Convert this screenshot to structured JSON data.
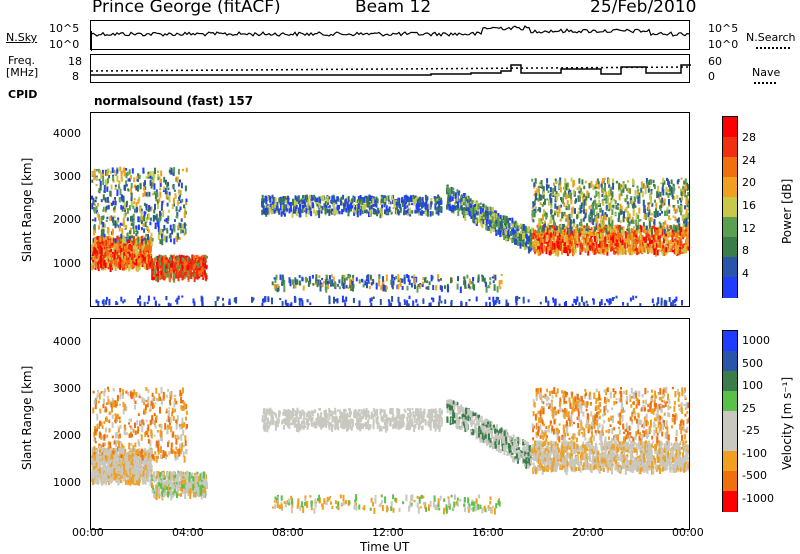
{
  "header": {
    "station": "Prince George (fitACF)",
    "beam": "Beam 12",
    "date": "25/Feb/2010"
  },
  "strip_panels": {
    "nsky_label": "N.Sky",
    "nsearch_label": "N.Search",
    "freq_label_1": "Freq.",
    "freq_label_2": "[MHz]",
    "nave_label": "Nave",
    "cpid_label": "CPID",
    "cpid_text": "normalsound (fast) 157",
    "nsky_ticks": [
      "10^5",
      "10^0"
    ],
    "freq_ticks": [
      "18",
      "8"
    ],
    "nave_ticks": [
      "60",
      "0"
    ]
  },
  "colors": {
    "power_scale": [
      "#1f3cff",
      "#2a55a8",
      "#3b7d4a",
      "#5aa050",
      "#c8c84a",
      "#f0a020",
      "#f07010",
      "#f03010",
      "#ff0000"
    ],
    "velocity_scale": [
      "#1f3cff",
      "#2a55a8",
      "#3b7d4a",
      "#5ac04a",
      "#c8c8c0",
      "#c8c8c0",
      "#f0a020",
      "#f07010",
      "#ff0000"
    ]
  },
  "chart_data": [
    {
      "type": "heatmap",
      "ylabel": "Slant Range [km]",
      "xlabel": "Time UT",
      "x_ticks": [
        "00:00",
        "04:00",
        "08:00",
        "12:00",
        "16:00",
        "20:00",
        "00:00"
      ],
      "y_ticks": [
        "1000",
        "2000",
        "3000",
        "4000"
      ],
      "ylim": [
        0,
        4500
      ],
      "colorbar_label": "Power [dB]",
      "colorbar_ticks": [
        "4",
        "8",
        "12",
        "16",
        "20",
        "24",
        "28"
      ]
    },
    {
      "type": "heatmap",
      "ylabel": "Slant Range [km]",
      "xlabel": "Time UT",
      "x_ticks": [
        "00:00",
        "04:00",
        "08:00",
        "12:00",
        "16:00",
        "20:00",
        "00:00"
      ],
      "y_ticks": [
        "1000",
        "2000",
        "3000",
        "4000"
      ],
      "ylim": [
        0,
        4500
      ],
      "colorbar_label": "Velocity [m s⁻¹]",
      "colorbar_ticks": [
        "1000",
        "500",
        "100",
        "25",
        "-25",
        "-100",
        "-500",
        "-1000"
      ]
    }
  ]
}
